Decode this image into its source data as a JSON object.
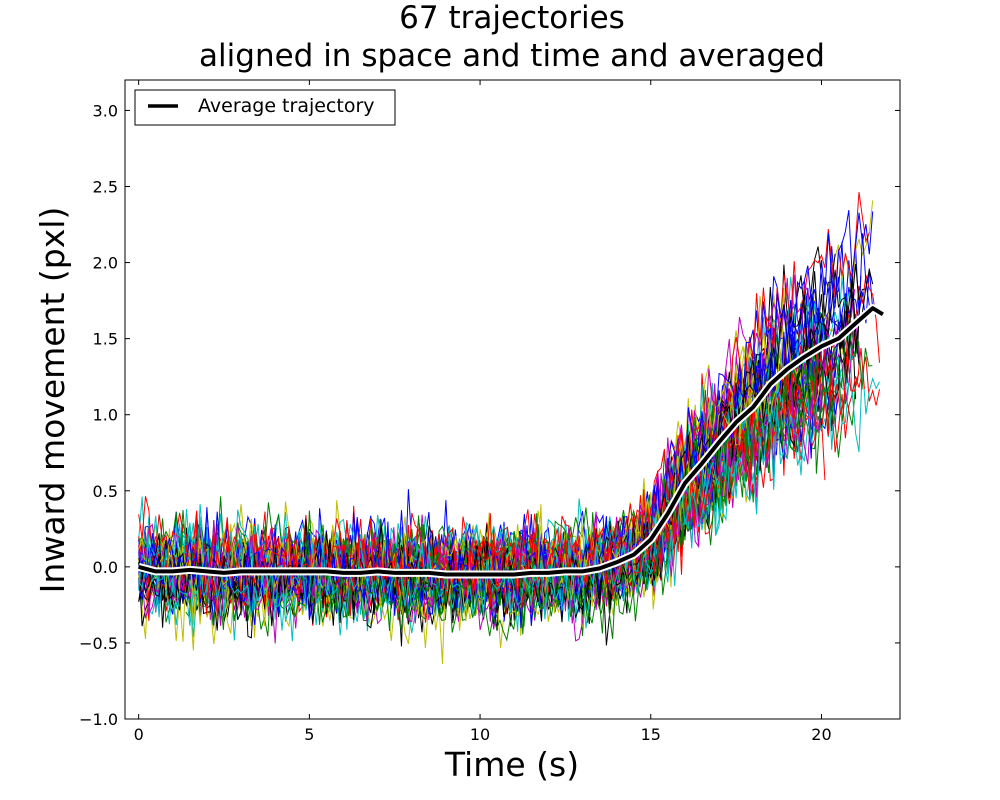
{
  "chart_data": {
    "type": "line",
    "title": "67 trajectories\naligned in space and time and averaged",
    "xlabel": "Time (s)",
    "ylabel": "Inward movement (pxl)",
    "xlim": [
      -0.4,
      22.3
    ],
    "ylim": [
      -1.0,
      3.2
    ],
    "xticks": [
      0,
      5,
      10,
      15,
      20
    ],
    "xtick_labels": [
      "0",
      "5",
      "10",
      "15",
      "20"
    ],
    "yticks": [
      -1.0,
      -0.5,
      0.0,
      0.5,
      1.0,
      1.5,
      2.0,
      2.5,
      3.0
    ],
    "ytick_labels": [
      "−1.0",
      "−0.5",
      "0.0",
      "0.5",
      "1.0",
      "1.5",
      "2.0",
      "2.5",
      "3.0"
    ],
    "grid": false,
    "legend": {
      "placement": "top-left",
      "entries": [
        "Average trajectory"
      ]
    },
    "trajectory_count": 67,
    "time_step": 0.1,
    "trajectory_colors": [
      "#0000ff",
      "#008000",
      "#ff0000",
      "#00bfbf",
      "#bf00bf",
      "#bfbf00",
      "#000000"
    ],
    "series": [
      {
        "name": "Average trajectory",
        "color": "#000000",
        "x": [
          0,
          0.5,
          1,
          1.5,
          2,
          2.5,
          3,
          3.5,
          4,
          4.5,
          5,
          5.5,
          6,
          6.5,
          7,
          7.5,
          8,
          8.5,
          9,
          9.5,
          10,
          10.5,
          11,
          11.5,
          12,
          12.5,
          13,
          13.5,
          14,
          14.5,
          15,
          15.5,
          16,
          16.5,
          17,
          17.5,
          18,
          18.5,
          19,
          19.5,
          20,
          20.5,
          21,
          21.5,
          21.8
        ],
        "y": [
          0.0,
          -0.03,
          -0.03,
          -0.02,
          -0.03,
          -0.04,
          -0.03,
          -0.03,
          -0.03,
          -0.03,
          -0.03,
          -0.03,
          -0.04,
          -0.04,
          -0.03,
          -0.04,
          -0.04,
          -0.04,
          -0.05,
          -0.05,
          -0.05,
          -0.05,
          -0.05,
          -0.04,
          -0.04,
          -0.03,
          -0.03,
          -0.01,
          0.03,
          0.08,
          0.18,
          0.35,
          0.55,
          0.68,
          0.82,
          0.95,
          1.05,
          1.2,
          1.3,
          1.38,
          1.45,
          1.5,
          1.6,
          1.7,
          1.66
        ]
      }
    ]
  }
}
